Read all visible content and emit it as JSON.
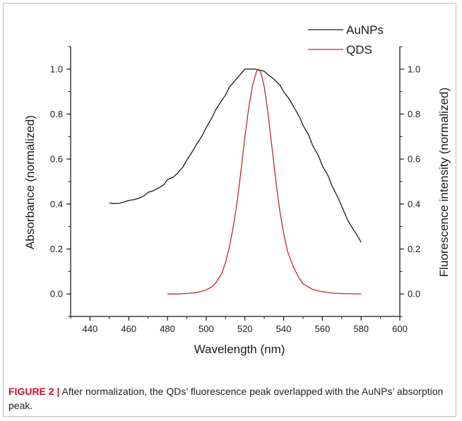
{
  "chart_data": {
    "type": "line",
    "xlabel": "Wavelength (nm)",
    "ylabel_left": "Absorbance (normalized)",
    "ylabel_right": "Fluorescence intensity (normalized)",
    "xlim": [
      430,
      600
    ],
    "ylim": [
      -0.1,
      1.1
    ],
    "xticks": [
      "440",
      "460",
      "480",
      "500",
      "520",
      "540",
      "560",
      "580",
      "600"
    ],
    "yticks": [
      "0.0",
      "0.2",
      "0.4",
      "0.6",
      "0.8",
      "1.0"
    ],
    "legend_placement": "top-right",
    "series": [
      {
        "name": "AuNPs",
        "color": "#1a1a1a",
        "x": [
          450,
          452,
          455,
          458,
          460,
          463,
          465,
          468,
          470,
          473,
          475,
          478,
          480,
          483,
          485,
          488,
          490,
          493,
          495,
          498,
          500,
          503,
          505,
          508,
          510,
          512,
          515,
          518,
          520,
          523,
          525,
          528,
          530,
          532,
          535,
          538,
          540,
          543,
          545,
          548,
          550,
          553,
          555,
          558,
          560,
          563,
          565,
          568,
          570,
          573,
          575,
          578,
          580
        ],
        "y": [
          0.405,
          0.402,
          0.403,
          0.41,
          0.416,
          0.42,
          0.425,
          0.437,
          0.452,
          0.46,
          0.47,
          0.485,
          0.508,
          0.52,
          0.535,
          0.565,
          0.595,
          0.635,
          0.665,
          0.705,
          0.74,
          0.785,
          0.82,
          0.86,
          0.885,
          0.92,
          0.95,
          0.98,
          1.0,
          1.0,
          1.0,
          0.995,
          0.99,
          0.975,
          0.955,
          0.93,
          0.9,
          0.865,
          0.835,
          0.79,
          0.75,
          0.705,
          0.66,
          0.615,
          0.57,
          0.525,
          0.48,
          0.43,
          0.39,
          0.33,
          0.3,
          0.26,
          0.23
        ]
      },
      {
        "name": "QDS",
        "color": "#c0282a",
        "x": [
          480,
          485,
          490,
          495,
          500,
          503,
          505,
          508,
          510,
          512,
          514,
          516,
          518,
          520,
          522,
          524,
          526,
          527,
          528,
          529,
          530,
          532,
          534,
          536,
          538,
          540,
          542,
          545,
          548,
          550,
          555,
          560,
          565,
          570,
          575,
          580
        ],
        "y": [
          0.0,
          0.0,
          0.002,
          0.006,
          0.018,
          0.032,
          0.05,
          0.09,
          0.14,
          0.21,
          0.3,
          0.41,
          0.55,
          0.7,
          0.83,
          0.93,
          0.99,
          1.0,
          0.99,
          0.96,
          0.92,
          0.8,
          0.65,
          0.5,
          0.37,
          0.27,
          0.19,
          0.12,
          0.07,
          0.045,
          0.02,
          0.01,
          0.004,
          0.002,
          0.001,
          0.0
        ]
      }
    ]
  },
  "caption": {
    "label": "FIGURE 2",
    "separator": "|",
    "text": " After normalization, the QDs’ fluorescence peak overlapped with the AuNPs’ absorption peak."
  }
}
